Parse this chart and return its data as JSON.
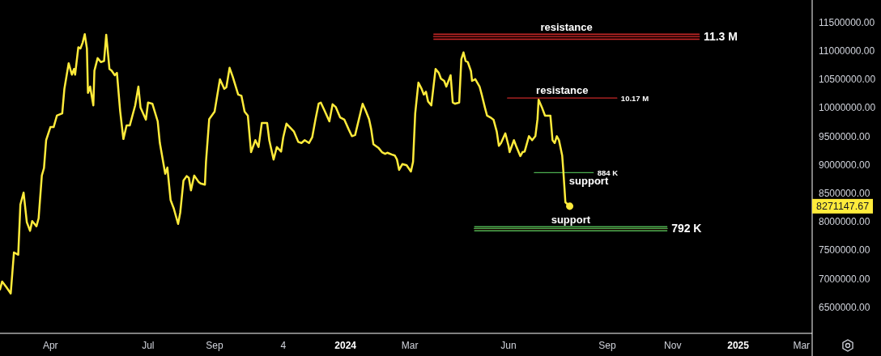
{
  "chart_data": {
    "type": "line",
    "x": [
      "2023-02-13",
      "2023-02-15",
      "2023-02-19",
      "2023-02-23",
      "2023-02-26",
      "2023-03-02",
      "2023-03-04",
      "2023-03-07",
      "2023-03-10",
      "2023-03-13",
      "2023-03-15",
      "2023-03-19",
      "2023-03-21",
      "2023-03-24",
      "2023-03-26",
      "2023-03-28",
      "2023-04-01",
      "2023-04-04",
      "2023-04-07",
      "2023-04-12",
      "2023-04-14",
      "2023-04-18",
      "2023-04-21",
      "2023-04-23",
      "2023-04-24",
      "2023-04-27",
      "2023-04-29",
      "2023-05-01",
      "2023-05-03",
      "2023-05-05",
      "2023-05-06",
      "2023-05-08",
      "2023-05-11",
      "2023-05-12",
      "2023-05-15",
      "2023-05-18",
      "2023-05-21",
      "2023-05-23",
      "2023-05-26",
      "2023-05-28",
      "2023-05-31",
      "2023-06-02",
      "2023-06-05",
      "2023-06-08",
      "2023-06-11",
      "2023-06-14",
      "2023-06-19",
      "2023-06-22",
      "2023-06-24",
      "2023-06-29",
      "2023-07-01",
      "2023-07-05",
      "2023-07-10",
      "2023-07-12",
      "2023-07-17",
      "2023-07-19",
      "2023-07-22",
      "2023-07-25",
      "2023-07-29",
      "2023-07-31",
      "2023-08-03",
      "2023-08-06",
      "2023-08-08",
      "2023-08-10",
      "2023-08-13",
      "2023-08-17",
      "2023-08-19",
      "2023-08-23",
      "2023-08-24",
      "2023-08-27",
      "2023-09-01",
      "2023-09-06",
      "2023-09-10",
      "2023-09-12",
      "2023-09-15",
      "2023-09-18",
      "2023-09-23",
      "2023-09-26",
      "2023-09-29",
      "2023-10-02",
      "2023-10-05",
      "2023-10-09",
      "2023-10-12",
      "2023-10-15",
      "2023-10-20",
      "2023-10-22",
      "2023-10-26",
      "2023-10-29",
      "2023-11-02",
      "2023-11-04",
      "2023-11-07",
      "2023-11-12",
      "2023-11-14",
      "2023-11-18",
      "2023-11-21",
      "2023-11-24",
      "2023-11-28",
      "2023-12-01",
      "2023-12-04",
      "2023-12-07",
      "2023-12-09",
      "2023-12-12",
      "2023-12-17",
      "2023-12-20",
      "2023-12-23",
      "2023-12-27",
      "2023-12-31",
      "2024-01-04",
      "2024-01-07",
      "2024-01-10",
      "2024-01-17",
      "2024-01-20",
      "2024-01-23",
      "2024-01-25",
      "2024-01-27",
      "2024-02-01",
      "2024-02-04",
      "2024-02-07",
      "2024-02-09",
      "2024-02-13",
      "2024-02-16",
      "2024-02-18",
      "2024-02-20",
      "2024-02-23",
      "2024-02-27",
      "2024-03-02",
      "2024-03-04",
      "2024-03-06",
      "2024-03-09",
      "2024-03-12",
      "2024-03-14",
      "2024-03-16",
      "2024-03-18",
      "2024-03-21",
      "2024-03-25",
      "2024-03-28",
      "2024-03-30",
      "2024-04-02",
      "2024-04-04",
      "2024-04-06",
      "2024-04-08",
      "2024-04-10",
      "2024-04-12",
      "2024-04-16",
      "2024-04-18",
      "2024-04-20",
      "2024-04-22",
      "2024-04-24",
      "2024-04-27",
      "2024-04-28",
      "2024-05-01",
      "2024-05-05",
      "2024-05-07",
      "2024-05-10",
      "2024-05-12",
      "2024-05-15",
      "2024-05-18",
      "2024-05-21",
      "2024-05-23",
      "2024-05-25",
      "2024-05-29",
      "2024-06-01",
      "2024-06-02",
      "2024-06-06",
      "2024-06-08",
      "2024-06-12",
      "2024-06-14",
      "2024-06-16",
      "2024-06-20",
      "2024-06-23",
      "2024-06-26",
      "2024-06-28",
      "2024-06-29",
      "2024-07-02",
      "2024-07-05",
      "2024-07-10",
      "2024-07-12",
      "2024-07-14",
      "2024-07-16",
      "2024-07-18",
      "2024-07-21",
      "2024-07-22",
      "2024-07-24",
      "2024-07-28"
    ],
    "series": [
      {
        "color": "#ffeb3b",
        "values": [
          6810000,
          6950000,
          6850000,
          6740000,
          7460000,
          7420000,
          8300000,
          8510000,
          7990000,
          7840000,
          8010000,
          7920000,
          8060000,
          8810000,
          8940000,
          9430000,
          9660000,
          9660000,
          9860000,
          9900000,
          10330000,
          10780000,
          10580000,
          10680000,
          10580000,
          11060000,
          11040000,
          11140000,
          11290000,
          11040000,
          10260000,
          10370000,
          10040000,
          10650000,
          10870000,
          10800000,
          10820000,
          11280000,
          10680000,
          10650000,
          10570000,
          10610000,
          9940000,
          9450000,
          9690000,
          9690000,
          10040000,
          10370000,
          10000000,
          9790000,
          10090000,
          10070000,
          9760000,
          9380000,
          8840000,
          8950000,
          8380000,
          8230000,
          7960000,
          8160000,
          8720000,
          8800000,
          8770000,
          8550000,
          8810000,
          8700000,
          8670000,
          8650000,
          9050000,
          9800000,
          9930000,
          10500000,
          10330000,
          10360000,
          10700000,
          10540000,
          10230000,
          10210000,
          9930000,
          9860000,
          9220000,
          9430000,
          9310000,
          9730000,
          9730000,
          9430000,
          9090000,
          9310000,
          9230000,
          9480000,
          9720000,
          9620000,
          9580000,
          9400000,
          9380000,
          9430000,
          9380000,
          9480000,
          9790000,
          10070000,
          10090000,
          9970000,
          9760000,
          10060000,
          10010000,
          9830000,
          9790000,
          9620000,
          9500000,
          9520000,
          10070000,
          9940000,
          9800000,
          9620000,
          9360000,
          9290000,
          9220000,
          9190000,
          9210000,
          9180000,
          9160000,
          9090000,
          8910000,
          9010000,
          8990000,
          8880000,
          9050000,
          9900000,
          10440000,
          10330000,
          10230000,
          10280000,
          10110000,
          10040000,
          10680000,
          10610000,
          10510000,
          10470000,
          10370000,
          10470000,
          10570000,
          10090000,
          10070000,
          10090000,
          10850000,
          10970000,
          10820000,
          10800000,
          10640000,
          10470000,
          10500000,
          10370000,
          10230000,
          10000000,
          9860000,
          9830000,
          9790000,
          9580000,
          9330000,
          9380000,
          9550000,
          9330000,
          9220000,
          9430000,
          9330000,
          9150000,
          9220000,
          9230000,
          9500000,
          9430000,
          9500000,
          9800000,
          10140000,
          10010000,
          9860000,
          9860000,
          9430000,
          9380000,
          9500000,
          9430000,
          9160000,
          8910000,
          8340000,
          8271147.67
        ]
      },
      {
        "type": "scatter",
        "color": "#ffeb3b",
        "marker": "circle",
        "x": [
          "2024-07-28"
        ],
        "values": [
          8271147.67
        ]
      },
      {
        "name": "resistance",
        "color": "#c62828",
        "x": [
          "2024-03-23",
          "2024-11-26"
        ],
        "values": [
          11250000,
          11250000
        ],
        "lower": [
          11200000,
          11200000
        ],
        "upper": [
          11290000,
          11290000
        ]
      },
      {
        "name": "resistance",
        "color": "#c62828",
        "x": [
          "2024-05-31",
          "2024-09-10"
        ],
        "values": [
          10170000,
          10170000
        ]
      },
      {
        "name": "support",
        "color": "#4caf50",
        "x": [
          "2024-06-25",
          "2024-08-19"
        ],
        "values": [
          8860000,
          8860000
        ]
      },
      {
        "name": "support",
        "color": "#4caf50",
        "x": [
          "2024-04-30",
          "2024-10-27"
        ],
        "values": [
          7880000,
          7880000
        ],
        "lower": [
          7840000,
          7840000
        ],
        "upper": [
          7910000,
          7910000
        ]
      }
    ],
    "xlim": [
      "2023-02-13",
      "2025-03-11"
    ],
    "xticks": [
      {
        "value": "2023-04-01",
        "label": "Apr"
      },
      {
        "value": "2023-07-01",
        "label": "Jul"
      },
      {
        "value": "2023-09-01",
        "label": "Sep"
      },
      {
        "value": "2023-11-04",
        "label": "4"
      },
      {
        "value": "2024-01-01",
        "label": "2024"
      },
      {
        "value": "2024-03-01",
        "label": "Mar"
      },
      {
        "value": "2024-06-01",
        "label": "Jun"
      },
      {
        "value": "2024-09-01",
        "label": "Sep"
      },
      {
        "value": "2024-11-01",
        "label": "Nov"
      },
      {
        "value": "2025-01-01",
        "label": "2025"
      },
      {
        "value": "2025-03-01",
        "label": "Mar"
      }
    ],
    "ylim": [
      6040000,
      11890000
    ],
    "yticks": [
      {
        "value": 6500000,
        "label": "6500000.00"
      },
      {
        "value": 7000000,
        "label": "7000000.00"
      },
      {
        "value": 7500000,
        "label": "7500000.00"
      },
      {
        "value": 8000000,
        "label": "8000000.00"
      },
      {
        "value": 8500000,
        "label": "8500000.00"
      },
      {
        "value": 9000000,
        "label": "9000000.00"
      },
      {
        "value": 9500000,
        "label": "9500000.00"
      },
      {
        "value": 10000000,
        "label": "10000000.00"
      },
      {
        "value": 10500000,
        "label": "10500000.00"
      },
      {
        "value": 11000000,
        "label": "11000000.00"
      },
      {
        "value": 11500000,
        "label": "11500000.00"
      }
    ],
    "annotations": [
      {
        "text": "11.3 M",
        "x": "2024-11-26",
        "y": 11250000
      },
      {
        "text": "10.17 M",
        "x": "2024-09-10",
        "y": 10170000
      },
      {
        "text": "884 K",
        "x": "2024-08-19",
        "y": 8860000
      },
      {
        "text": "792 K",
        "x": "2024-10-27",
        "y": 7880000
      },
      "8271147.67"
    ]
  }
}
